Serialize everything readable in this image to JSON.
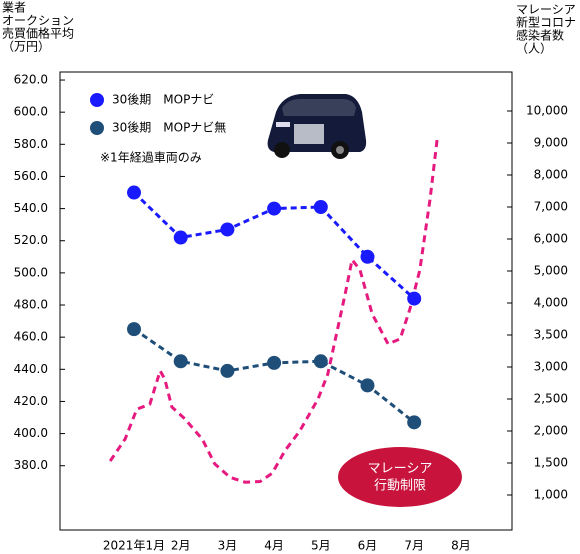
{
  "chart_data": {
    "type": "line",
    "y_label_lines": [
      "業者",
      "オークション",
      "売買価格平均",
      "（万円）"
    ],
    "y2_label_lines": [
      "マレーシア",
      "新型コロナ",
      "感染者数",
      "（人）"
    ],
    "categories": [
      "2021年1月",
      "2月",
      "3月",
      "4月",
      "5月",
      "6月",
      "7月",
      "8月"
    ],
    "ylim": [
      340,
      625
    ],
    "yticks": [
      {
        "value": 620,
        "label": "620.0"
      },
      {
        "value": 600,
        "label": "600.0"
      },
      {
        "value": 580,
        "label": "580.0"
      },
      {
        "value": 560,
        "label": "560.0"
      },
      {
        "value": 540,
        "label": "540.0"
      },
      {
        "value": 520,
        "label": "520.0"
      },
      {
        "value": 500,
        "label": "500.0"
      },
      {
        "value": 480,
        "label": "480.0"
      },
      {
        "value": 460,
        "label": "460.0"
      },
      {
        "value": 440,
        "label": "440.0"
      },
      {
        "value": 420,
        "label": "420.0"
      },
      {
        "value": 400,
        "label": "400.0"
      },
      {
        "value": 380,
        "label": "380.0"
      }
    ],
    "y2ticks": [
      {
        "value": 1000,
        "label": "1,000"
      },
      {
        "value": 1500,
        "label": "1,500"
      },
      {
        "value": 2000,
        "label": "2,000"
      },
      {
        "value": 2500,
        "label": "2,500"
      },
      {
        "value": 3000,
        "label": "3,000"
      },
      {
        "value": 3500,
        "label": "3,500"
      },
      {
        "value": 4000,
        "label": "4,000"
      },
      {
        "value": 5000,
        "label": "5,000"
      },
      {
        "value": 6000,
        "label": "6,000"
      },
      {
        "value": 7000,
        "label": "7,000"
      },
      {
        "value": 8000,
        "label": "8,000"
      },
      {
        "value": 9000,
        "label": "9,000"
      },
      {
        "value": 10000,
        "label": "10,000"
      }
    ],
    "series": [
      {
        "name": "30後期　MOPナビ",
        "color": "#1a1aff",
        "values": [
          550,
          522,
          527,
          540,
          541,
          510,
          484,
          null
        ]
      },
      {
        "name": "30後期　MOPナビ無",
        "color": "#1f4e79",
        "values": [
          465,
          445,
          439,
          444,
          445,
          430,
          407,
          null
        ]
      }
    ],
    "covid": {
      "color": "#e6197f",
      "axis": "y2",
      "x": [
        0.49,
        0.81,
        1.06,
        1.34,
        1.56,
        1.66,
        1.81,
        2.09,
        2.31,
        2.46,
        2.73,
        3.06,
        3.38,
        3.7,
        3.96,
        4.23,
        4.55,
        4.94,
        5.15,
        5.52,
        5.67,
        5.84,
        6.1,
        6.44,
        6.7,
        6.91,
        7.12,
        7.34,
        7.49
      ],
      "values": [
        1530,
        1875,
        2340,
        2420,
        2940,
        2810,
        2375,
        2190,
        2000,
        1875,
        1485,
        1275,
        1200,
        1210,
        1340,
        1690,
        2000,
        2500,
        2890,
        4270,
        5350,
        5030,
        3830,
        3360,
        3440,
        3910,
        5030,
        7250,
        9100
      ]
    },
    "note": "※1年経過車両のみ",
    "annotation_lines": [
      "マレーシア",
      "行動制限"
    ]
  }
}
